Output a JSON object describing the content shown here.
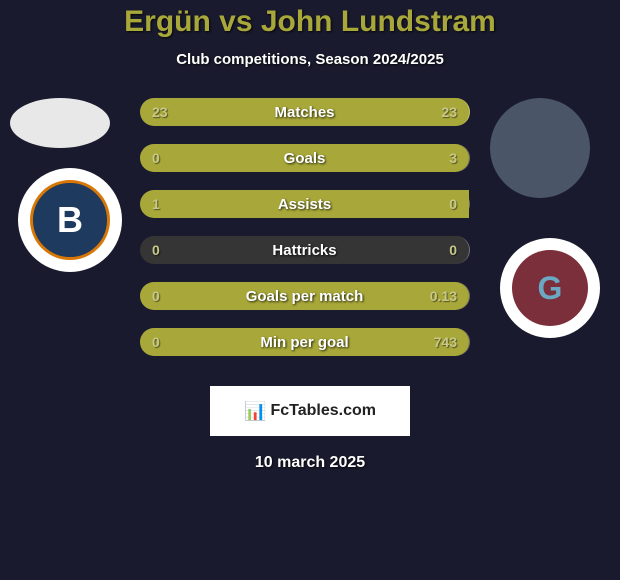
{
  "title": "Ergün vs John Lundstram",
  "subtitle": "Club competitions, Season 2024/2025",
  "date": "10 march 2025",
  "watermark": "FcTables.com",
  "colors": {
    "bar_fill": "#a8a83a",
    "bar_empty": "rgba(80,80,60,0.5)",
    "text_title": "#a8a83a",
    "logo_left_bg": "#1e3a5f",
    "logo_left_border": "#d97706",
    "logo_right_bg": "#7a2f3a",
    "logo_right_fg": "#6ba8c4"
  },
  "logos": {
    "left_letter": "B",
    "right_letter": "G"
  },
  "stats": [
    {
      "label": "Matches",
      "left_value": "23",
      "right_value": "23",
      "left_pct": 50,
      "right_pct": 50,
      "left_color": "#a8a83a",
      "right_color": "#a8a83a"
    },
    {
      "label": "Goals",
      "left_value": "0",
      "right_value": "3",
      "left_pct": 0,
      "right_pct": 100,
      "left_color": "rgba(80,80,60,0.5)",
      "right_color": "#a8a83a"
    },
    {
      "label": "Assists",
      "left_value": "1",
      "right_value": "0",
      "left_pct": 100,
      "right_pct": 0,
      "left_color": "#a8a83a",
      "right_color": "rgba(80,80,60,0.5)"
    },
    {
      "label": "Hattricks",
      "left_value": "0",
      "right_value": "0",
      "left_pct": 0,
      "right_pct": 0,
      "left_color": "rgba(80,80,60,0.5)",
      "right_color": "rgba(80,80,60,0.5)"
    },
    {
      "label": "Goals per match",
      "left_value": "0",
      "right_value": "0.13",
      "left_pct": 0,
      "right_pct": 100,
      "left_color": "rgba(80,80,60,0.5)",
      "right_color": "#a8a83a"
    },
    {
      "label": "Min per goal",
      "left_value": "0",
      "right_value": "743",
      "left_pct": 0,
      "right_pct": 100,
      "left_color": "rgba(80,80,60,0.5)",
      "right_color": "#a8a83a"
    }
  ]
}
